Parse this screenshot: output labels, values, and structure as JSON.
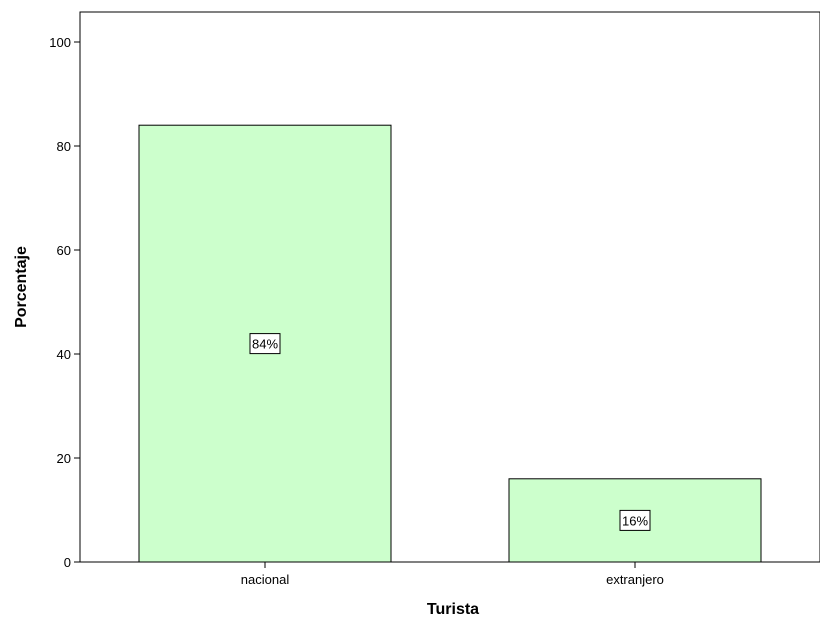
{
  "chart_data": {
    "type": "bar",
    "title": "",
    "xlabel": "Turista",
    "ylabel": "Porcentaje",
    "categories": [
      "nacional",
      "extranjero"
    ],
    "values": [
      84,
      16
    ],
    "data_labels": [
      "84%",
      "16%"
    ],
    "ylim": [
      0,
      100
    ],
    "yticks": [
      0,
      20,
      40,
      60,
      80,
      100
    ],
    "bar_color": "#ccffcc",
    "bar_edge_color": "#000000",
    "grid": false,
    "legend": "none"
  }
}
